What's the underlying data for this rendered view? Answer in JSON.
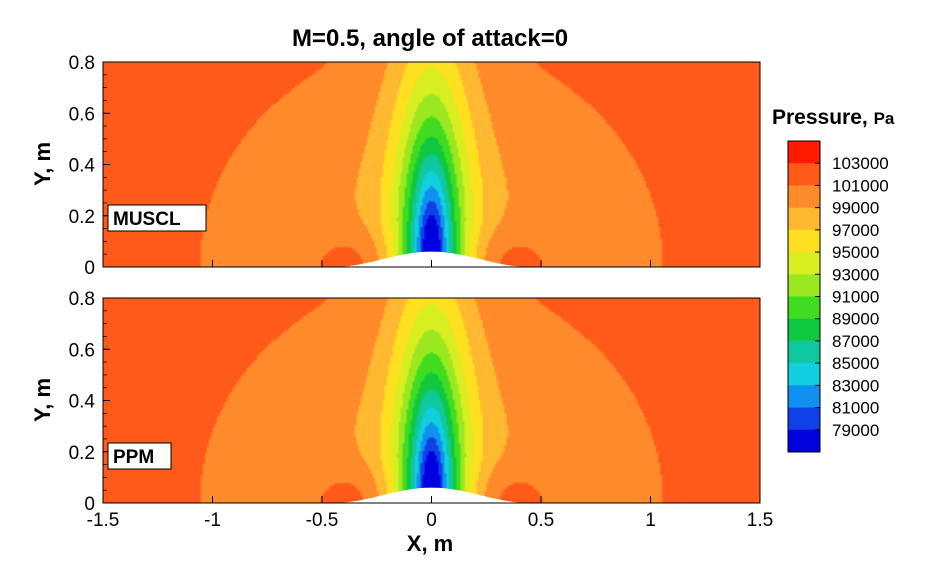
{
  "chart_data": {
    "type": "contour",
    "title": "M=0.5, angle of attack=0",
    "xlabel": "X, m",
    "ylabel": "Y, m",
    "xlim": [
      -1.5,
      1.5
    ],
    "ylim": [
      0,
      0.8
    ],
    "x_ticks": [
      {
        "value": -1.5,
        "label": "-1.5"
      },
      {
        "value": -1,
        "label": "-1"
      },
      {
        "value": -0.5,
        "label": "-0.5"
      },
      {
        "value": 0,
        "label": "0"
      },
      {
        "value": 0.5,
        "label": "0.5"
      },
      {
        "value": 1,
        "label": "1"
      },
      {
        "value": 1.5,
        "label": "1.5"
      }
    ],
    "y_ticks": [
      {
        "value": 0,
        "label": "0"
      },
      {
        "value": 0.2,
        "label": "0.2"
      },
      {
        "value": 0.4,
        "label": "0.4"
      },
      {
        "value": 0.6,
        "label": "0.6"
      },
      {
        "value": 0.8,
        "label": "0.8"
      }
    ],
    "panels": [
      {
        "label": "MUSCL"
      },
      {
        "label": "PPM"
      }
    ],
    "colorbar": {
      "title": "Pressure,",
      "unit": "Pa",
      "labels": [
        "103000",
        "101000",
        "99000",
        "97000",
        "95000",
        "93000",
        "91000",
        "89000",
        "87000",
        "85000",
        "83000",
        "81000",
        "79000"
      ],
      "colors": [
        "#ff1a00",
        "#ff5a1a",
        "#ff8a2a",
        "#ffb830",
        "#ffe020",
        "#d8ee20",
        "#9ae820",
        "#40dc20",
        "#10c840",
        "#10c8a0",
        "#10d0e0",
        "#1090f0",
        "#1040e8",
        "#0000e0"
      ],
      "min": 79000,
      "max": 104000
    }
  }
}
